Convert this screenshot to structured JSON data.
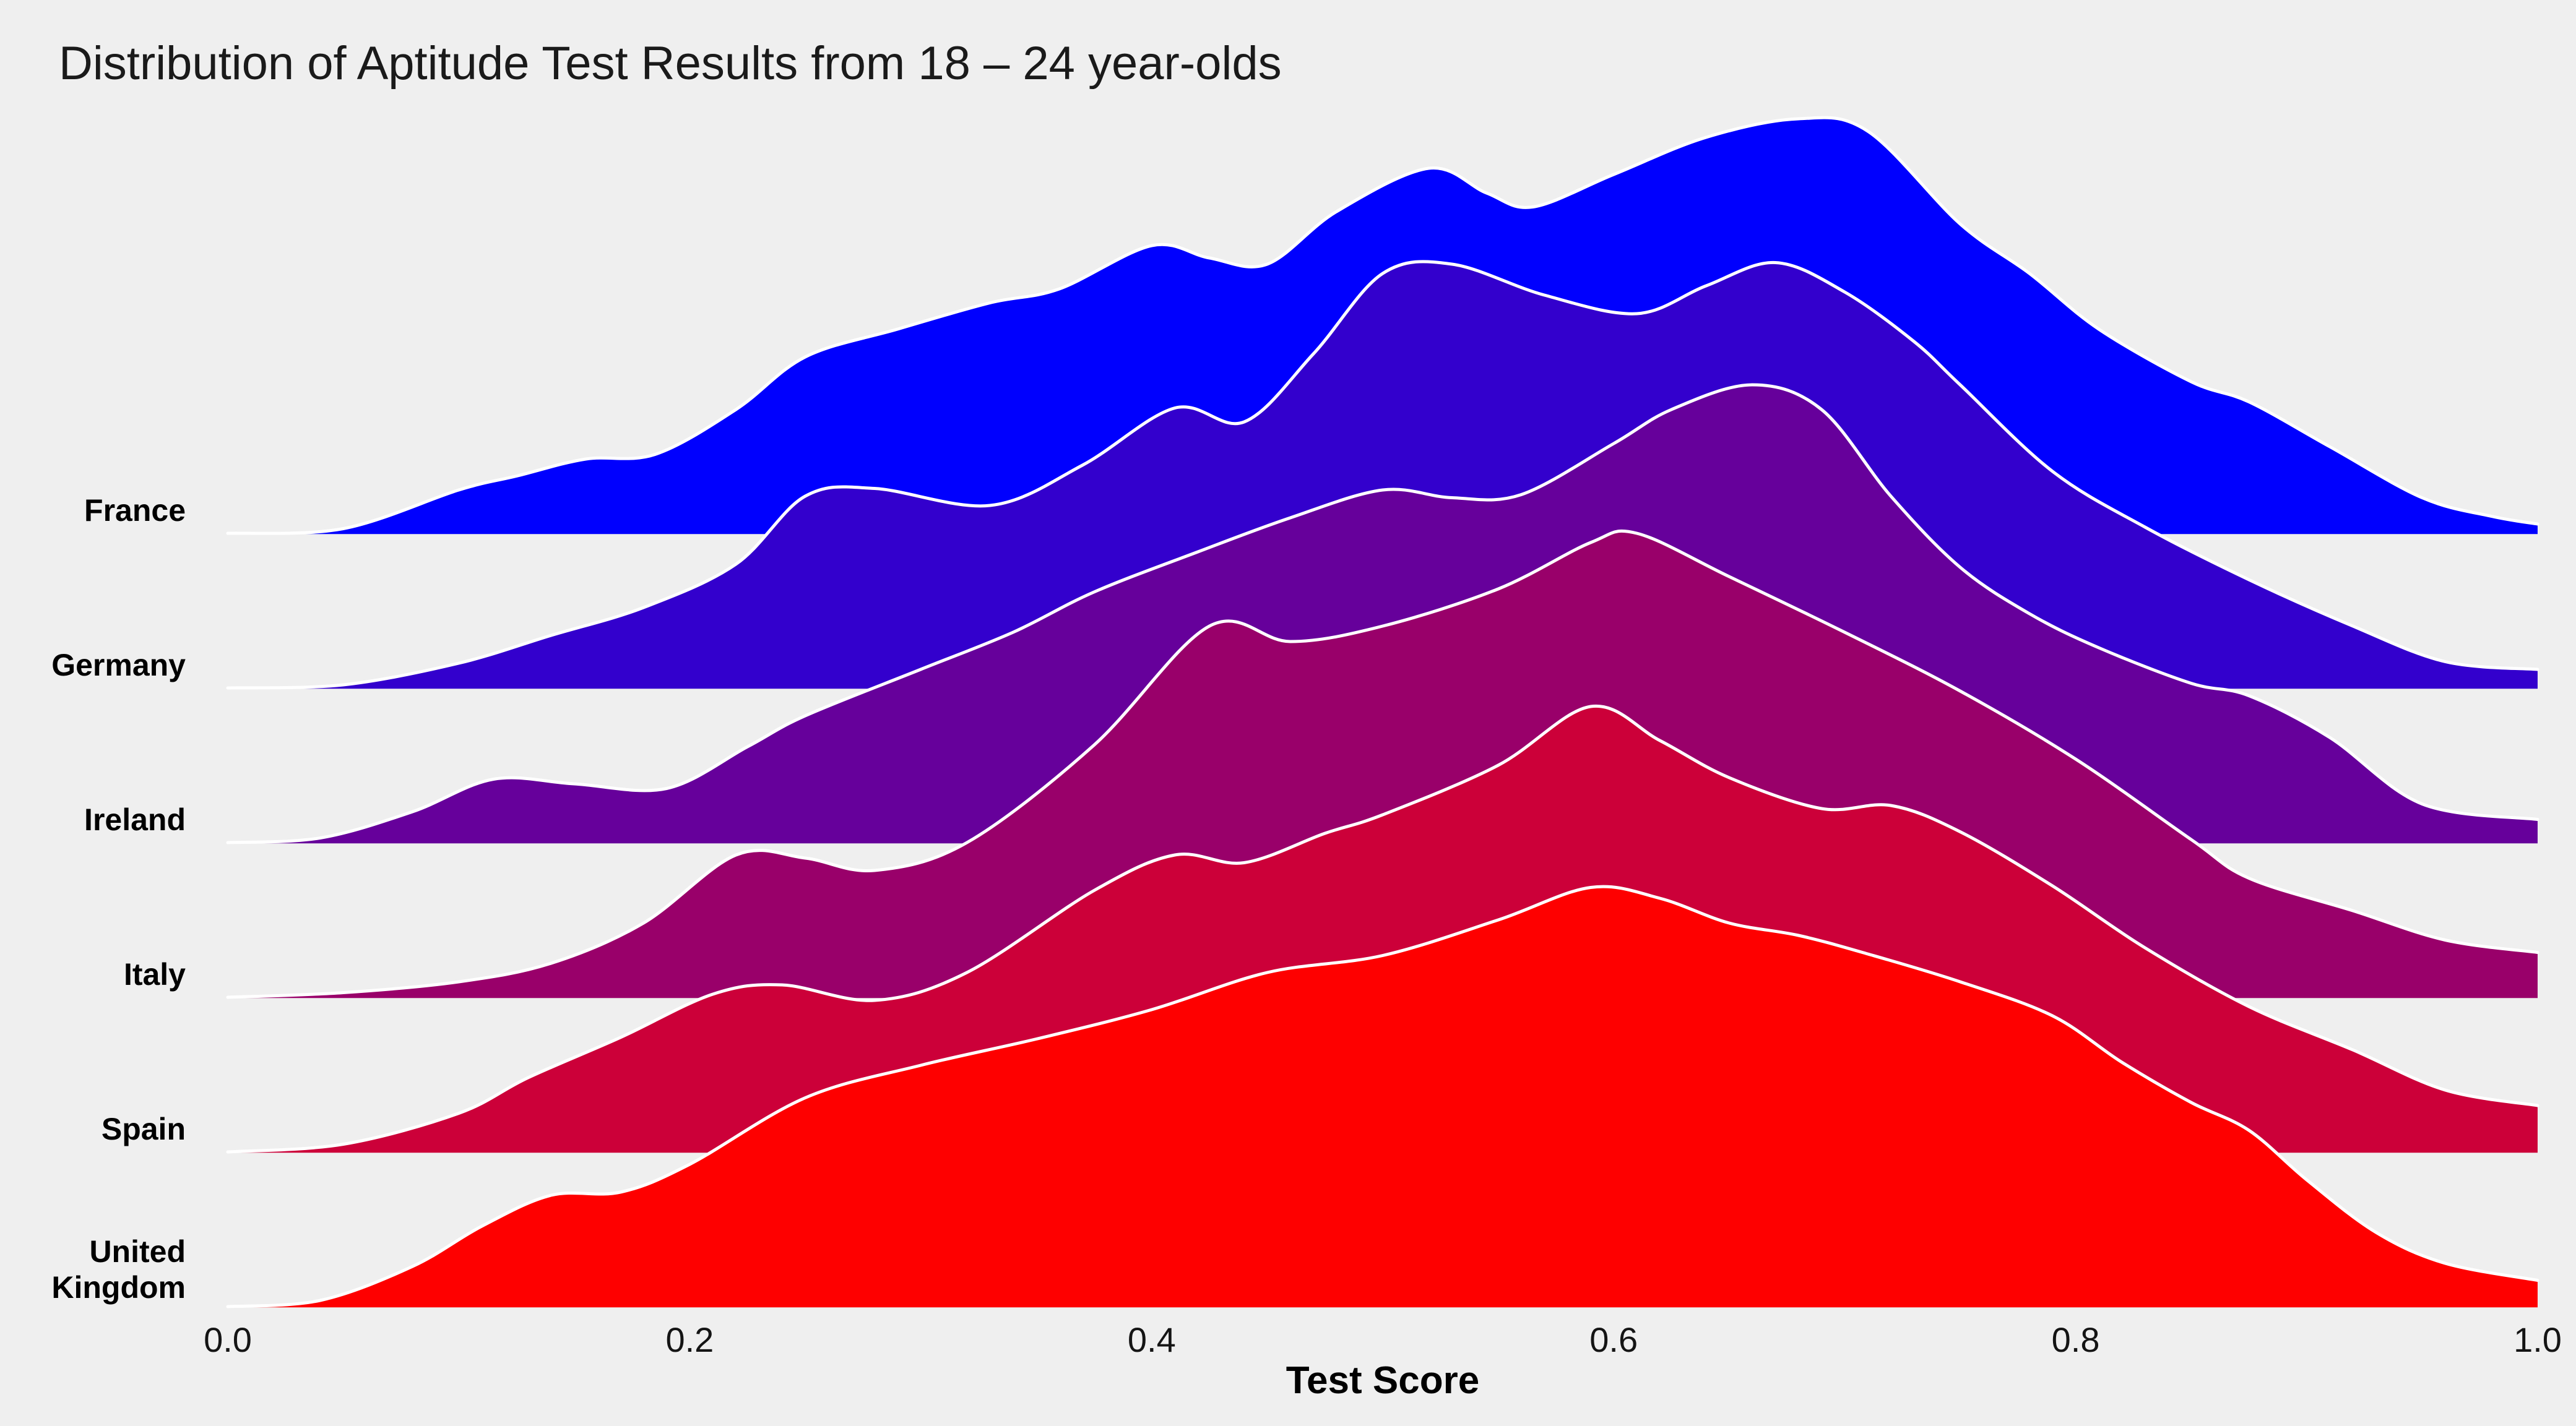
{
  "title": "Distribution of Aptitude Test Results from 18 – 24 year-olds",
  "background_color": "#efefef",
  "text_color": "#1a1a1a",
  "chart_data": {
    "type": "area",
    "subtype": "ridgeline",
    "title": "Distribution of Aptitude Test Results from 18 – 24 year-olds",
    "xlabel": "Test Score",
    "xlim": [
      0.0,
      1.0
    ],
    "xticks": [
      "0.0",
      "0.2",
      "0.4",
      "0.6",
      "0.8",
      "1.0"
    ],
    "grid": false,
    "legend": "none",
    "outline_color": "#ffffff",
    "y_units": "row-spacing units (1.0 = vertical distance between adjacent category baselines)",
    "categories": [
      "France",
      "Germany",
      "Ireland",
      "Italy",
      "Spain",
      "United Kingdom"
    ],
    "series": [
      {
        "name": "France",
        "color": "#0000fe",
        "x": [
          0,
          0.05,
          0.1,
          0.125,
          0.155,
          0.185,
          0.22,
          0.25,
          0.29,
          0.33,
          0.36,
          0.4,
          0.425,
          0.45,
          0.48,
          0.52,
          0.545,
          0.565,
          0.6,
          0.64,
          0.68,
          0.71,
          0.75,
          0.78,
          0.81,
          0.85,
          0.875,
          0.91,
          0.95,
          0.98,
          1.0
        ],
        "density": [
          0,
          0.03,
          0.28,
          0.37,
          0.48,
          0.51,
          0.8,
          1.14,
          1.32,
          1.49,
          1.58,
          1.86,
          1.78,
          1.74,
          2.08,
          2.36,
          2.2,
          2.11,
          2.32,
          2.56,
          2.68,
          2.6,
          2.0,
          1.68,
          1.32,
          0.98,
          0.85,
          0.56,
          0.23,
          0.11,
          0.06
        ]
      },
      {
        "name": "Germany",
        "color": "#3300cd",
        "x": [
          0,
          0.05,
          0.1,
          0.14,
          0.18,
          0.22,
          0.25,
          0.28,
          0.33,
          0.37,
          0.41,
          0.44,
          0.47,
          0.5,
          0.53,
          0.57,
          0.61,
          0.64,
          0.67,
          0.7,
          0.73,
          0.75,
          0.79,
          0.83,
          0.875,
          0.92,
          0.96,
          1.0
        ],
        "density": [
          0,
          0.02,
          0.16,
          0.34,
          0.52,
          0.8,
          1.24,
          1.29,
          1.18,
          1.44,
          1.81,
          1.72,
          2.16,
          2.68,
          2.74,
          2.54,
          2.42,
          2.6,
          2.75,
          2.56,
          2.24,
          1.96,
          1.4,
          1.04,
          0.7,
          0.4,
          0.17,
          0.12
        ]
      },
      {
        "name": "Ireland",
        "color": "#66009b",
        "x": [
          0,
          0.04,
          0.08,
          0.115,
          0.15,
          0.19,
          0.225,
          0.25,
          0.3,
          0.34,
          0.375,
          0.42,
          0.46,
          0.5,
          0.53,
          0.56,
          0.6,
          0.625,
          0.66,
          0.69,
          0.72,
          0.75,
          0.78,
          0.81,
          0.85,
          0.875,
          0.91,
          0.95,
          1.0
        ],
        "density": [
          0,
          0.03,
          0.2,
          0.41,
          0.38,
          0.35,
          0.62,
          0.82,
          1.12,
          1.36,
          1.62,
          1.88,
          2.1,
          2.28,
          2.23,
          2.25,
          2.58,
          2.8,
          2.96,
          2.8,
          2.24,
          1.78,
          1.48,
          1.26,
          1.03,
          0.95,
          0.68,
          0.25,
          0.15
        ]
      },
      {
        "name": "Italy",
        "color": "#99006a",
        "x": [
          0,
          0.05,
          0.1,
          0.14,
          0.18,
          0.22,
          0.25,
          0.28,
          0.32,
          0.375,
          0.425,
          0.46,
          0.5,
          0.55,
          0.59,
          0.61,
          0.65,
          0.7,
          0.75,
          0.8,
          0.85,
          0.875,
          0.92,
          0.96,
          1.0
        ],
        "density": [
          0,
          0.03,
          0.1,
          0.22,
          0.48,
          0.92,
          0.9,
          0.82,
          1.0,
          1.63,
          2.4,
          2.3,
          2.4,
          2.64,
          2.94,
          3.0,
          2.72,
          2.36,
          1.98,
          1.54,
          1.02,
          0.77,
          0.56,
          0.37,
          0.29
        ]
      },
      {
        "name": "Spain",
        "color": "#cc0039",
        "x": [
          0,
          0.05,
          0.1,
          0.13,
          0.17,
          0.21,
          0.24,
          0.28,
          0.32,
          0.375,
          0.41,
          0.44,
          0.475,
          0.5,
          0.55,
          0.59,
          0.62,
          0.65,
          0.69,
          0.72,
          0.75,
          0.79,
          0.83,
          0.875,
          0.92,
          0.96,
          1.0
        ],
        "density": [
          0,
          0.05,
          0.25,
          0.48,
          0.74,
          1.02,
          1.08,
          0.98,
          1.16,
          1.69,
          1.92,
          1.87,
          2.06,
          2.18,
          2.5,
          2.88,
          2.66,
          2.42,
          2.22,
          2.24,
          2.07,
          1.72,
          1.32,
          0.94,
          0.66,
          0.4,
          0.3
        ]
      },
      {
        "name": "United Kingdom",
        "color": "#fe0000",
        "x": [
          0,
          0.04,
          0.08,
          0.11,
          0.14,
          0.17,
          0.2,
          0.25,
          0.3,
          0.35,
          0.4,
          0.45,
          0.5,
          0.55,
          0.59,
          0.62,
          0.65,
          0.68,
          0.71,
          0.75,
          0.79,
          0.82,
          0.85,
          0.875,
          0.9,
          0.93,
          0.96,
          1.0
        ],
        "density": [
          0,
          0.04,
          0.26,
          0.52,
          0.72,
          0.74,
          0.92,
          1.35,
          1.56,
          1.73,
          1.92,
          2.16,
          2.27,
          2.5,
          2.71,
          2.64,
          2.48,
          2.4,
          2.28,
          2.1,
          1.88,
          1.58,
          1.32,
          1.14,
          0.82,
          0.48,
          0.28,
          0.17
        ]
      }
    ]
  }
}
